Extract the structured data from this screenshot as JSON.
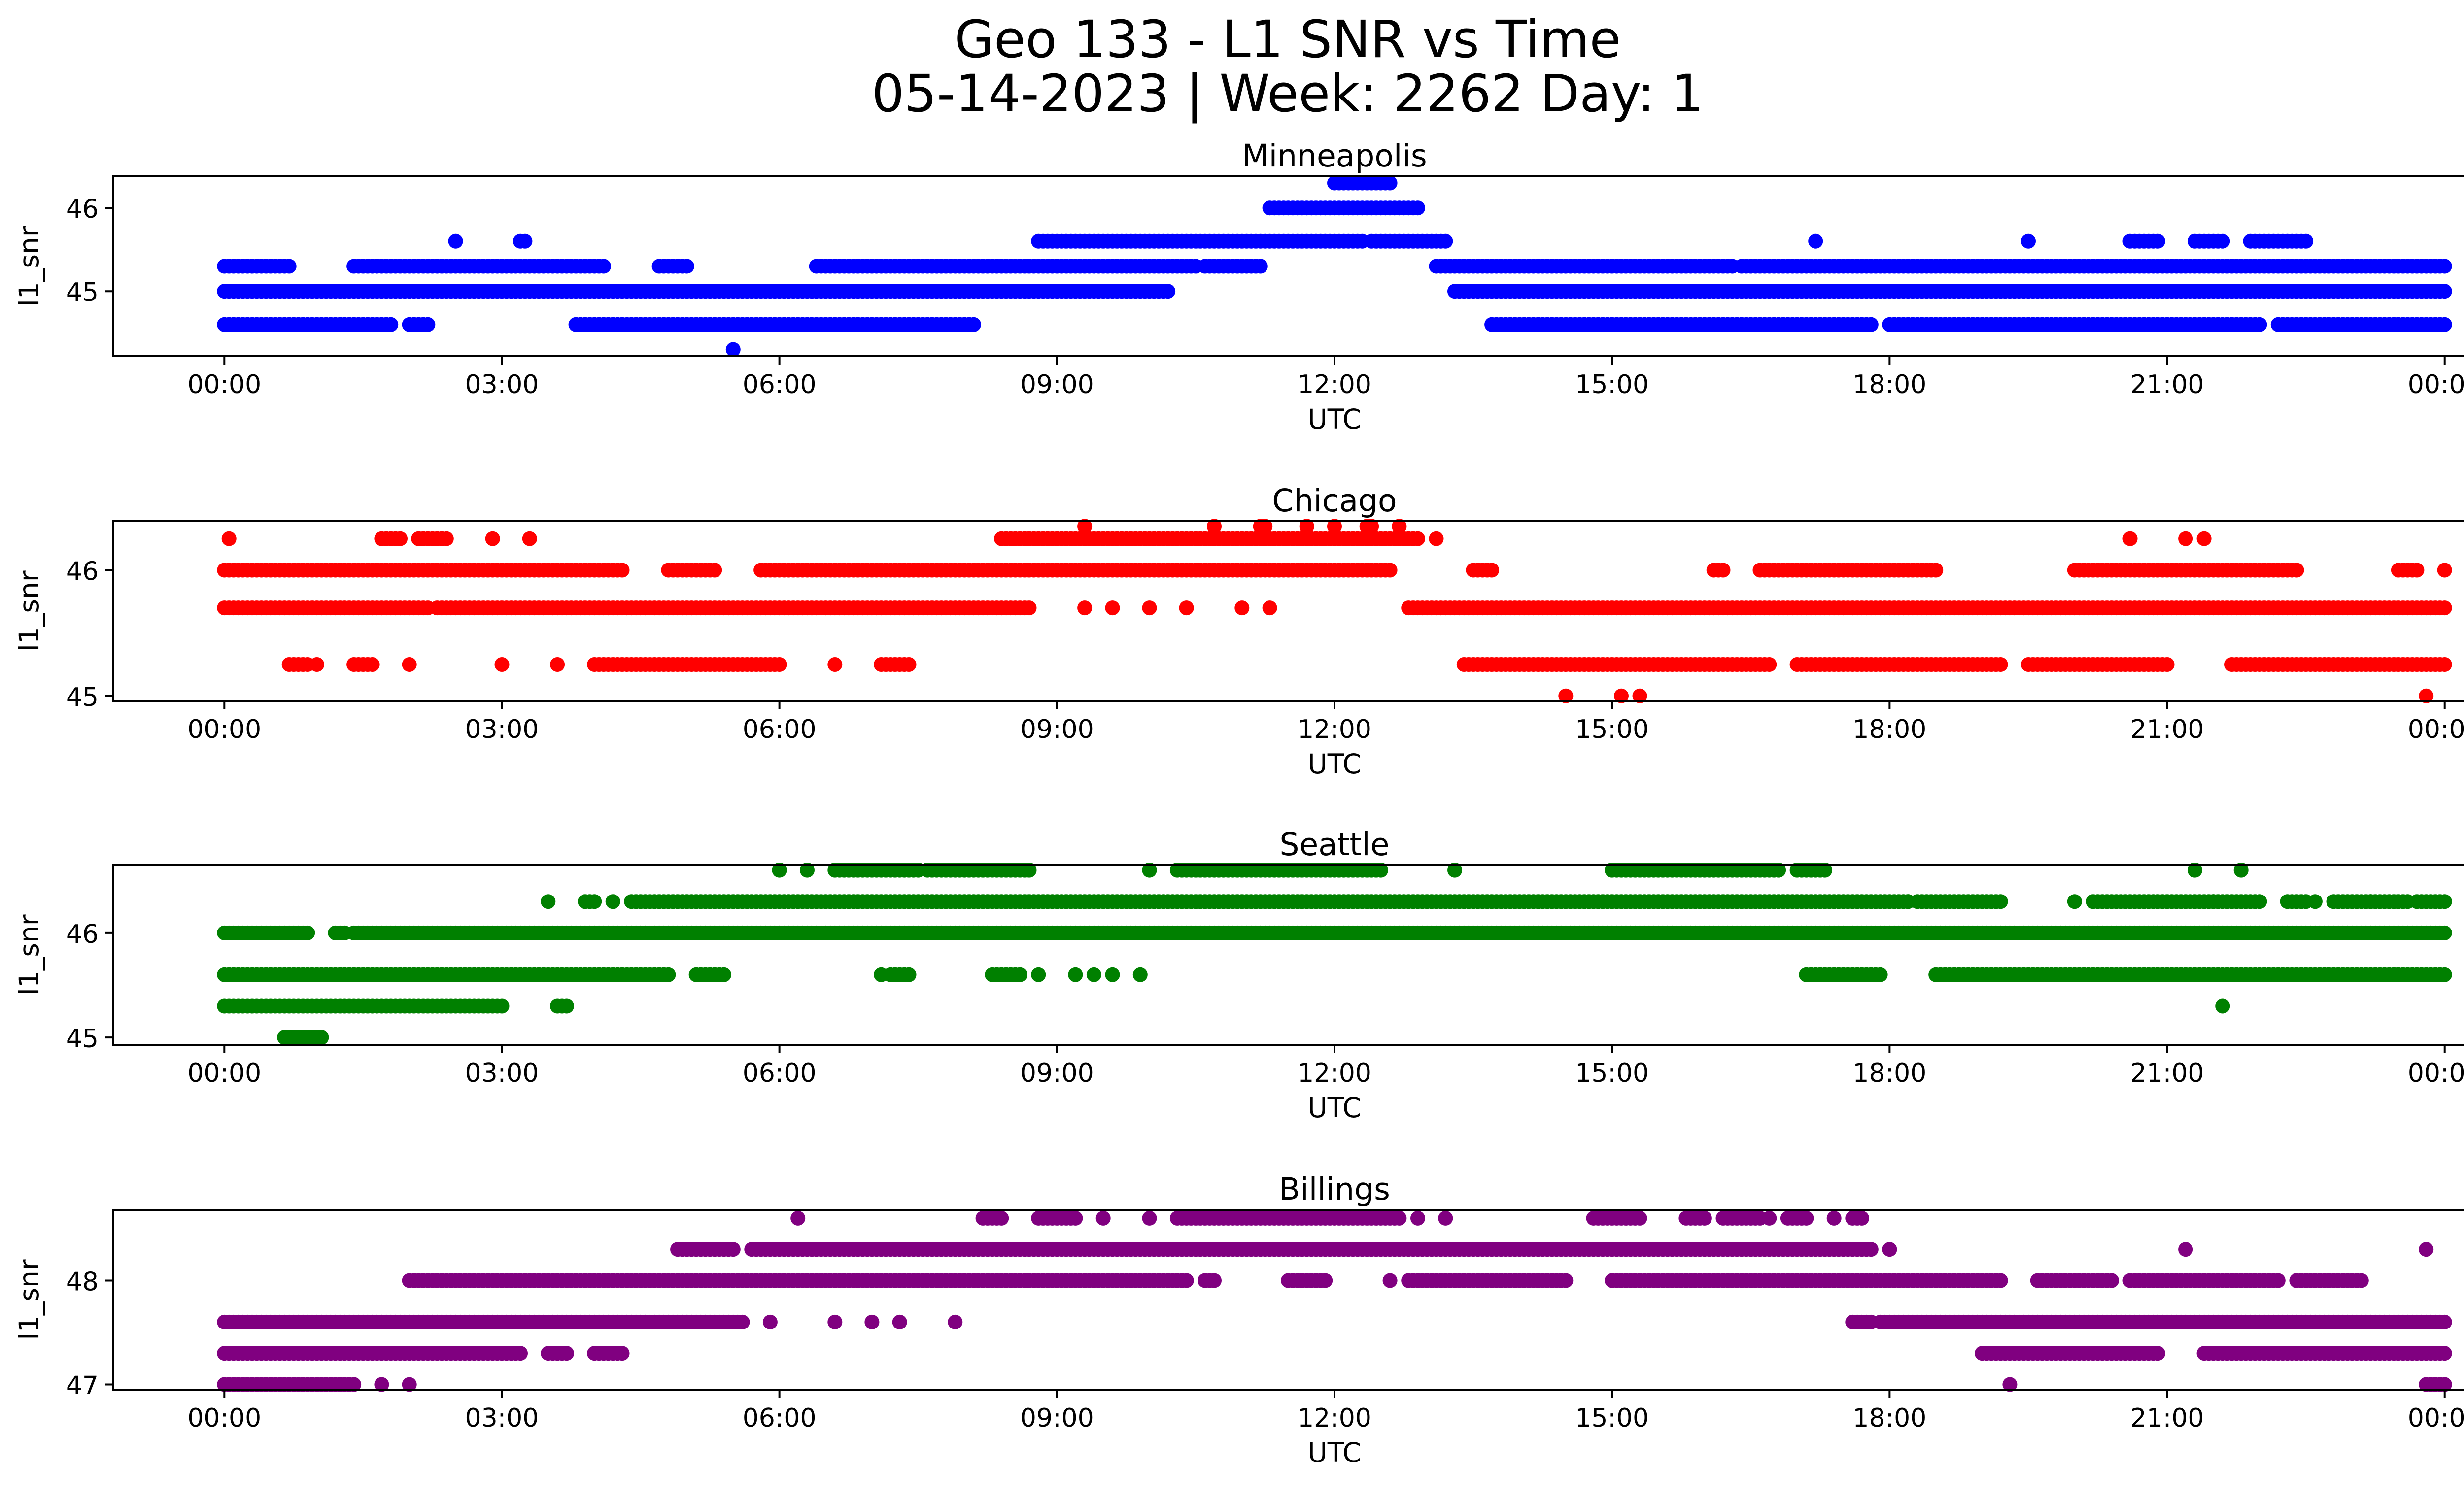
{
  "title": {
    "line1": "Geo 133 - L1 SNR vs Time",
    "line2": "05-14-2023 | Week: 2262 Day: 1"
  },
  "xlabel": "UTC",
  "ylabel": "l1_snr",
  "xticks": [
    "00:00",
    "03:00",
    "06:00",
    "09:00",
    "12:00",
    "15:00",
    "18:00",
    "21:00",
    "00:00"
  ],
  "chart_data": [
    {
      "type": "scatter",
      "title": "Minneapolis",
      "color": "#0000ff",
      "xlabel": "UTC",
      "ylabel": "l1_snr",
      "xlim_hours": [
        -1.2,
        25.2
      ],
      "ylim": [
        44.22,
        46.38
      ],
      "yticks": [
        45,
        46
      ],
      "levels": [
        {
          "y": 46.3,
          "segments": [
            [
              12.0,
              12.6
            ]
          ]
        },
        {
          "y": 46.0,
          "segments": [
            [
              11.3,
              12.9
            ]
          ]
        },
        {
          "y": 45.6,
          "points": [
            2.5,
            3.2,
            3.25,
            17.2,
            19.5
          ],
          "segments": [
            [
              8.8,
              12.3
            ],
            [
              12.4,
              13.2
            ],
            [
              20.6,
              20.9
            ],
            [
              21.3,
              21.6
            ],
            [
              21.9,
              22.5
            ]
          ]
        },
        {
          "y": 45.3,
          "segments": [
            [
              0.0,
              0.7
            ],
            [
              1.4,
              4.1
            ],
            [
              4.7,
              5.0
            ],
            [
              6.4,
              10.5
            ],
            [
              10.6,
              11.2
            ],
            [
              13.1,
              16.3
            ],
            [
              16.4,
              24.0
            ]
          ]
        },
        {
          "y": 45.0,
          "segments": [
            [
              0.0,
              10.2
            ],
            [
              13.3,
              24.0
            ]
          ]
        },
        {
          "y": 44.6,
          "segments": [
            [
              0.0,
              1.8
            ],
            [
              2.0,
              2.2
            ],
            [
              3.8,
              8.1
            ],
            [
              13.7,
              17.8
            ],
            [
              18.0,
              22.0
            ],
            [
              22.2,
              24.0
            ]
          ]
        },
        {
          "y": 44.3,
          "points": [
            5.5
          ]
        }
      ]
    },
    {
      "type": "scatter",
      "title": "Chicago",
      "color": "#ff0000",
      "xlabel": "UTC",
      "ylabel": "l1_snr",
      "xlim_hours": [
        -1.2,
        25.2
      ],
      "ylim": [
        44.96,
        46.39
      ],
      "yticks": [
        45,
        46
      ],
      "levels": [
        {
          "y": 46.35,
          "points": [
            9.3,
            10.7,
            11.2,
            11.25,
            11.7,
            12.0,
            12.35,
            12.4,
            12.7
          ]
        },
        {
          "y": 46.25,
          "points": [
            0.05,
            2.1,
            2.9,
            3.3,
            13.1,
            20.6,
            21.2,
            21.4
          ],
          "segments": [
            [
              1.7,
              1.9
            ],
            [
              2.1,
              2.4
            ],
            [
              8.4,
              12.9
            ]
          ]
        },
        {
          "y": 46.0,
          "points": [
            24.0
          ],
          "segments": [
            [
              0.0,
              4.3
            ],
            [
              4.8,
              5.3
            ],
            [
              5.8,
              12.6
            ],
            [
              13.5,
              13.7
            ],
            [
              16.1,
              16.2
            ],
            [
              16.6,
              18.5
            ],
            [
              20.0,
              22.4
            ],
            [
              23.5,
              23.7
            ]
          ]
        },
        {
          "y": 45.7,
          "points": [
            9.3,
            9.6,
            10.0,
            10.4,
            11.0,
            11.3
          ],
          "segments": [
            [
              0.0,
              2.2
            ],
            [
              2.3,
              8.7
            ],
            [
              12.8,
              24.0
            ]
          ]
        },
        {
          "y": 45.25,
          "points": [
            1.0,
            2.0,
            3.0,
            3.6,
            6.6
          ],
          "segments": [
            [
              0.7,
              0.9
            ],
            [
              1.4,
              1.6
            ],
            [
              4.0,
              6.0
            ],
            [
              7.1,
              7.4
            ],
            [
              13.4,
              16.7
            ],
            [
              17.0,
              19.2
            ],
            [
              19.5,
              21.0
            ],
            [
              21.7,
              24.0
            ]
          ]
        },
        {
          "y": 45.0,
          "points": [
            14.5,
            15.1,
            15.3,
            23.8
          ]
        }
      ]
    },
    {
      "type": "scatter",
      "title": "Seattle",
      "color": "#008000",
      "xlabel": "UTC",
      "ylabel": "l1_snr",
      "xlim_hours": [
        -1.2,
        25.2
      ],
      "ylim": [
        44.93,
        46.65
      ],
      "yticks": [
        45,
        46
      ],
      "levels": [
        {
          "y": 46.6,
          "points": [
            6.0,
            6.3,
            10.0,
            13.3,
            21.3,
            21.8
          ],
          "segments": [
            [
              6.6,
              7.5
            ],
            [
              7.6,
              8.7
            ],
            [
              10.3,
              12.5
            ],
            [
              15.0,
              16.8
            ],
            [
              17.0,
              17.3
            ]
          ]
        },
        {
          "y": 46.3,
          "points": [
            3.5,
            4.2,
            18.2,
            20.0,
            21.5,
            22.6,
            23.2
          ],
          "segments": [
            [
              3.9,
              4.0
            ],
            [
              4.4,
              18.2
            ],
            [
              18.3,
              19.2
            ],
            [
              20.2,
              22.0
            ],
            [
              22.3,
              22.5
            ],
            [
              22.8,
              23.6
            ],
            [
              23.7,
              24.0
            ]
          ]
        },
        {
          "y": 46.0,
          "segments": [
            [
              0.0,
              0.9
            ],
            [
              1.2,
              1.3
            ],
            [
              1.4,
              24.0
            ]
          ]
        },
        {
          "y": 45.6,
          "points": [
            7.1,
            8.8,
            9.2,
            9.4,
            9.6,
            9.9
          ],
          "segments": [
            [
              0.0,
              4.8
            ],
            [
              5.1,
              5.4
            ],
            [
              7.2,
              7.4
            ],
            [
              8.3,
              8.6
            ],
            [
              17.1,
              17.9
            ],
            [
              18.5,
              24.0
            ]
          ]
        },
        {
          "y": 45.3,
          "points": [
            21.6
          ],
          "segments": [
            [
              0.0,
              3.0
            ],
            [
              3.6,
              3.7
            ]
          ]
        },
        {
          "y": 45.0,
          "segments": [
            [
              0.65,
              1.05
            ]
          ]
        }
      ]
    },
    {
      "type": "scatter",
      "title": "Billings",
      "color": "#800080",
      "xlabel": "UTC",
      "ylabel": "l1_snr",
      "xlim_hours": [
        -1.2,
        25.2
      ],
      "ylim": [
        46.95,
        48.68
      ],
      "yticks": [
        47,
        48
      ],
      "levels": [
        {
          "y": 48.6,
          "points": [
            6.2,
            9.5,
            10.0,
            12.9,
            13.2,
            16.7,
            17.4
          ],
          "segments": [
            [
              8.2,
              8.4
            ],
            [
              8.8,
              9.2
            ],
            [
              10.3,
              12.7
            ],
            [
              14.8,
              15.3
            ],
            [
              15.8,
              16.0
            ],
            [
              16.2,
              16.6
            ],
            [
              16.9,
              17.1
            ],
            [
              17.6,
              17.7
            ]
          ]
        },
        {
          "y": 48.3,
          "points": [
            18.0,
            21.2,
            23.8
          ],
          "segments": [
            [
              4.9,
              5.5
            ],
            [
              5.7,
              17.8
            ]
          ]
        },
        {
          "y": 48.0,
          "points": [
            12.6
          ],
          "segments": [
            [
              2.0,
              10.4
            ],
            [
              10.6,
              10.7
            ],
            [
              11.5,
              11.9
            ],
            [
              12.8,
              14.5
            ],
            [
              15.0,
              19.2
            ],
            [
              19.6,
              20.4
            ],
            [
              20.6,
              22.2
            ],
            [
              22.4,
              23.1
            ]
          ]
        },
        {
          "y": 47.6,
          "points": [
            5.9,
            6.6,
            7.0,
            7.3,
            7.9
          ],
          "segments": [
            [
              0.0,
              5.6
            ],
            [
              17.6,
              17.8
            ],
            [
              17.9,
              24.0
            ]
          ]
        },
        {
          "y": 47.3,
          "points": [
            3.6
          ],
          "segments": [
            [
              0.0,
              3.2
            ],
            [
              3.5,
              3.7
            ],
            [
              4.0,
              4.3
            ],
            [
              19.0,
              20.9
            ],
            [
              21.4,
              24.0
            ]
          ]
        },
        {
          "y": 47.0,
          "points": [
            1.7,
            2.0,
            19.3
          ],
          "segments": [
            [
              0.0,
              1.4
            ],
            [
              23.8,
              24.0
            ]
          ]
        }
      ]
    }
  ]
}
